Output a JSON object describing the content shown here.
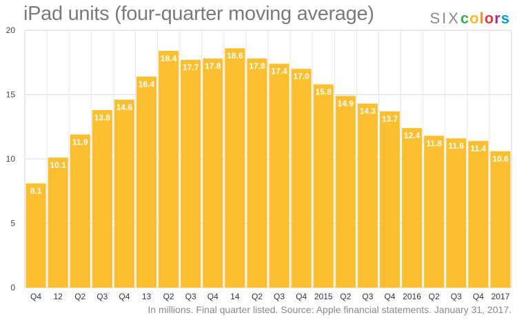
{
  "chart_data": {
    "type": "bar",
    "title": "iPad units (four-quarter moving average)",
    "footnote": "In millions. Final quarter listed. Source: Apple financial statements. January 31, 2017.",
    "categories": [
      "Q4",
      "12",
      "Q2",
      "Q3",
      "Q4",
      "13",
      "Q2",
      "Q3",
      "Q4",
      "14",
      "Q2",
      "Q3",
      "Q4",
      "2015",
      "Q2",
      "Q3",
      "Q4",
      "2016",
      "Q2",
      "Q3",
      "Q4",
      "2017"
    ],
    "values": [
      8.1,
      10.1,
      11.9,
      13.8,
      14.6,
      16.4,
      18.4,
      17.7,
      17.8,
      18.6,
      17.8,
      17.4,
      17.0,
      15.8,
      14.9,
      14.3,
      13.7,
      12.4,
      11.8,
      11.6,
      11.4,
      10.6
    ],
    "value_labels": [
      "8.1",
      "10.1",
      "11.9",
      "13.8",
      "14.6",
      "16.4",
      "18.4",
      "17.7",
      "17.8",
      "18.6",
      "17.8",
      "17.4",
      "17.0",
      "15.8",
      "14.9",
      "14.3",
      "13.7",
      "12.4",
      "11.8",
      "11.6",
      "11.4",
      "10.6"
    ],
    "y_ticks": [
      "0",
      "5",
      "10",
      "15",
      "20"
    ],
    "ylim": [
      0,
      20
    ],
    "grid": true,
    "legend": "none",
    "bar_color": "#fcbf2f"
  },
  "brand": {
    "six": "SIX",
    "letters": [
      "c",
      "o",
      "l",
      "o",
      "r",
      "s"
    ],
    "colors": [
      "#35b34a",
      "#fcb827",
      "#f58a1f",
      "#e03a3e",
      "#913b94",
      "#009ddc"
    ]
  }
}
